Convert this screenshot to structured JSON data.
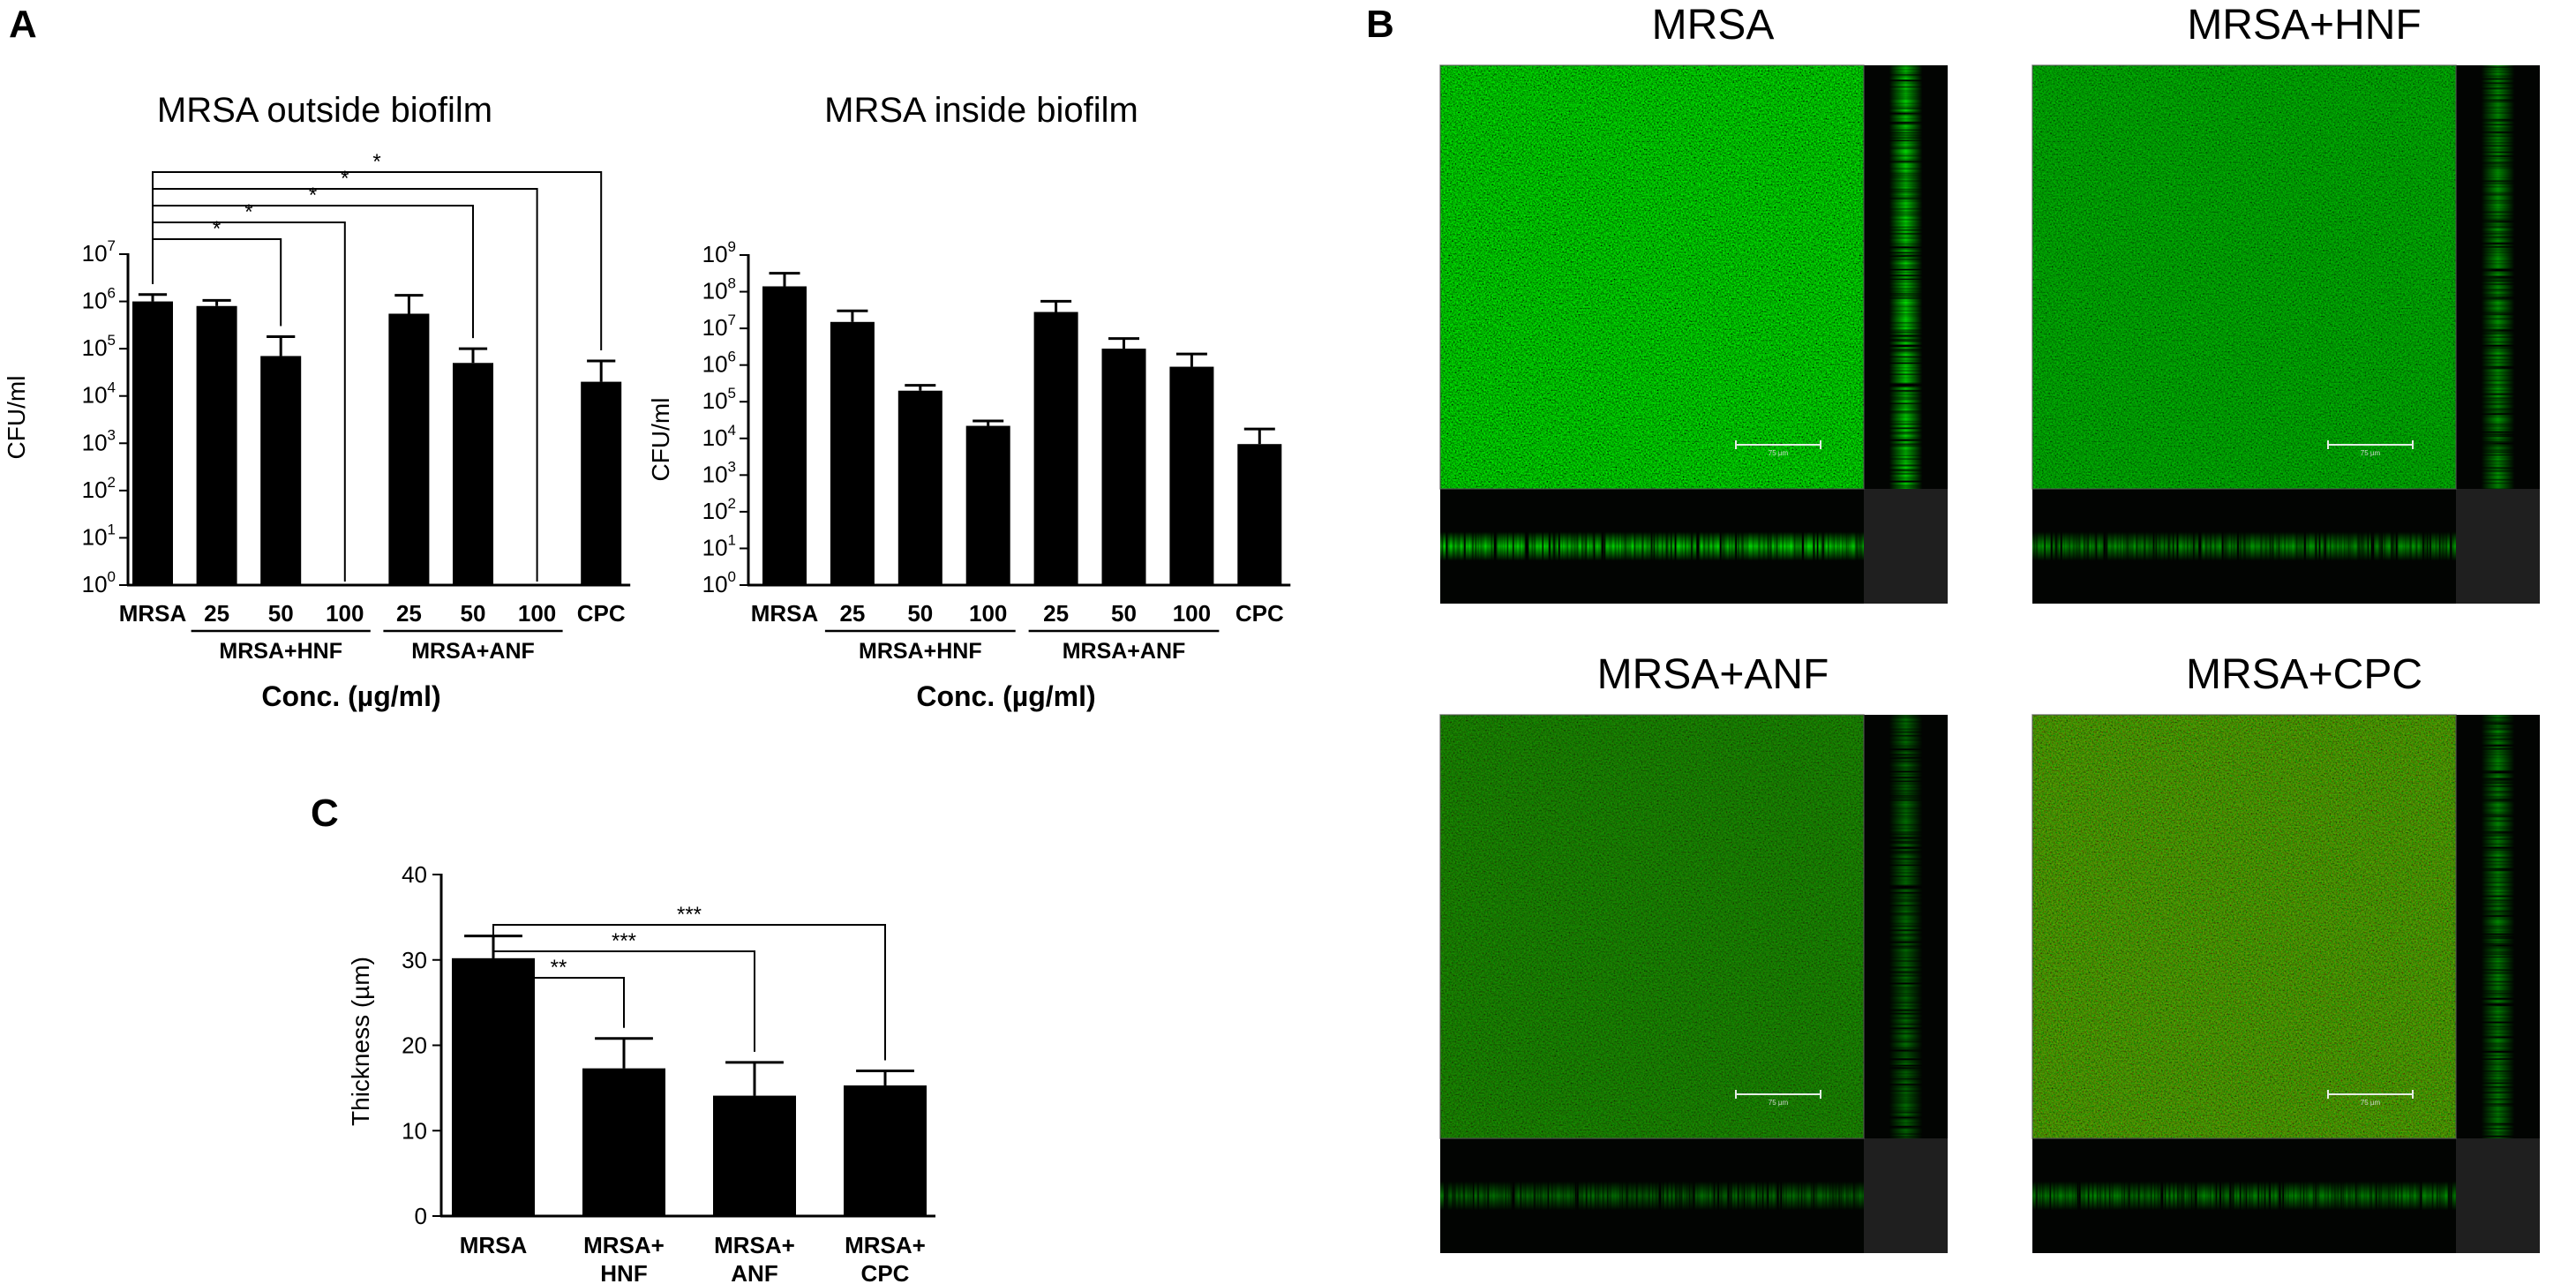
{
  "panel_labels": {
    "a": "A",
    "b": "B",
    "c": "C"
  },
  "chart_data": [
    {
      "id": "outside",
      "type": "bar",
      "title": "MRSA outside biofilm",
      "ylabel": "CFU/ml",
      "xlabel": "Conc. (µg/ml)",
      "yscale": "log",
      "ylim": [
        1,
        10000000
      ],
      "y_tick_exponents": [
        0,
        1,
        2,
        3,
        4,
        5,
        6,
        7
      ],
      "categories": [
        "MRSA",
        "25",
        "50",
        "100",
        "25",
        "50",
        "100",
        "CPC"
      ],
      "values": [
        1000000,
        800000,
        70000,
        0,
        550000,
        50000,
        0,
        20000
      ],
      "errors_upper": [
        1400000,
        1050000,
        180000,
        0,
        1350000,
        100000,
        0,
        55000
      ],
      "groups": [
        {
          "label": "MRSA+HNF",
          "from": 1,
          "to": 3
        },
        {
          "label": "MRSA+ANF",
          "from": 4,
          "to": 6
        }
      ],
      "significance": [
        {
          "from": 0,
          "to": 2,
          "label": "*"
        },
        {
          "from": 0,
          "to": 3,
          "label": "*"
        },
        {
          "from": 0,
          "to": 5,
          "label": "*"
        },
        {
          "from": 0,
          "to": 6,
          "label": "*"
        },
        {
          "from": 0,
          "to": 7,
          "label": "*"
        }
      ]
    },
    {
      "id": "inside",
      "type": "bar",
      "title": "MRSA inside biofilm",
      "ylabel": "CFU/ml",
      "xlabel": "Conc. (µg/ml)",
      "yscale": "log",
      "ylim": [
        1,
        1000000000
      ],
      "y_tick_exponents": [
        0,
        1,
        2,
        3,
        4,
        5,
        6,
        7,
        8,
        9
      ],
      "categories": [
        "MRSA",
        "25",
        "50",
        "100",
        "25",
        "50",
        "100",
        "CPC"
      ],
      "values": [
        140000000,
        15000000,
        200000,
        22000,
        28000000,
        2800000,
        900000,
        7000
      ],
      "errors_upper": [
        320000000,
        30000000,
        280000,
        30000,
        55000000,
        5300000,
        2000000,
        18000
      ],
      "groups": [
        {
          "label": "MRSA+HNF",
          "from": 1,
          "to": 3
        },
        {
          "label": "MRSA+ANF",
          "from": 4,
          "to": 6
        }
      ],
      "significance": []
    },
    {
      "id": "thickness",
      "type": "bar",
      "title": "",
      "ylabel": "Thickness (µm)",
      "xlabel": "",
      "yscale": "linear",
      "ylim": [
        0,
        40
      ],
      "y_ticks": [
        0,
        10,
        20,
        30,
        40
      ],
      "categories": [
        [
          "MRSA"
        ],
        [
          "MRSA+",
          "HNF"
        ],
        [
          "MRSA+",
          "ANF"
        ],
        [
          "MRSA+",
          "CPC"
        ]
      ],
      "values": [
        30.2,
        17.3,
        14.1,
        15.3
      ],
      "errors_upper": [
        32.8,
        20.8,
        18.0,
        17.0
      ],
      "significance": [
        {
          "from": 0,
          "to": 1,
          "label": "**"
        },
        {
          "from": 0,
          "to": 2,
          "label": "***"
        },
        {
          "from": 0,
          "to": 3,
          "label": "***"
        }
      ]
    }
  ],
  "micrographs": [
    {
      "label": "MRSA",
      "intensity": 1.0,
      "red": 0.0,
      "scale_text": "75 µm"
    },
    {
      "label": "MRSA+HNF",
      "intensity": 0.55,
      "red": 0.0,
      "scale_text": "75 µm"
    },
    {
      "label": "MRSA+ANF",
      "intensity": 0.3,
      "red": 0.15,
      "scale_text": "75 µm"
    },
    {
      "label": "MRSA+CPC",
      "intensity": 0.45,
      "red": 0.45,
      "scale_text": "75 µm"
    }
  ]
}
